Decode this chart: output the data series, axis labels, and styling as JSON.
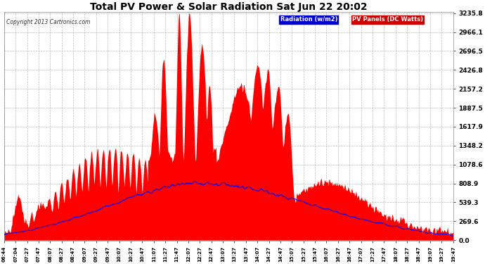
{
  "title": "Total PV Power & Solar Radiation Sat Jun 22 20:02",
  "copyright": "Copyright 2013 Cartronics.com",
  "legend_radiation": "Radiation (w/m2)",
  "legend_pv": "PV Panels (DC Watts)",
  "yticks": [
    0.0,
    269.6,
    539.3,
    808.9,
    1078.6,
    1348.2,
    1617.9,
    1887.5,
    2157.2,
    2426.8,
    2696.5,
    2966.1,
    3235.8
  ],
  "ymax": 3235.8,
  "ymin": 0.0,
  "plot_bg_color": "#ffffff",
  "fig_bg_color": "#ffffff",
  "grid_color": "#aaaaaa",
  "pv_color": "#ff0000",
  "radiation_color": "#0000ff",
  "xtick_labels": [
    "06:44",
    "07:04",
    "07:27",
    "07:47",
    "08:07",
    "08:27",
    "08:47",
    "09:07",
    "09:27",
    "09:47",
    "10:07",
    "10:27",
    "10:47",
    "11:07",
    "11:27",
    "11:47",
    "12:07",
    "12:27",
    "12:47",
    "13:07",
    "13:27",
    "13:47",
    "14:07",
    "14:27",
    "14:47",
    "15:07",
    "15:27",
    "15:47",
    "16:07",
    "16:27",
    "16:47",
    "17:07",
    "17:27",
    "17:47",
    "18:07",
    "18:27",
    "18:47",
    "19:07",
    "19:27",
    "19:47"
  ]
}
